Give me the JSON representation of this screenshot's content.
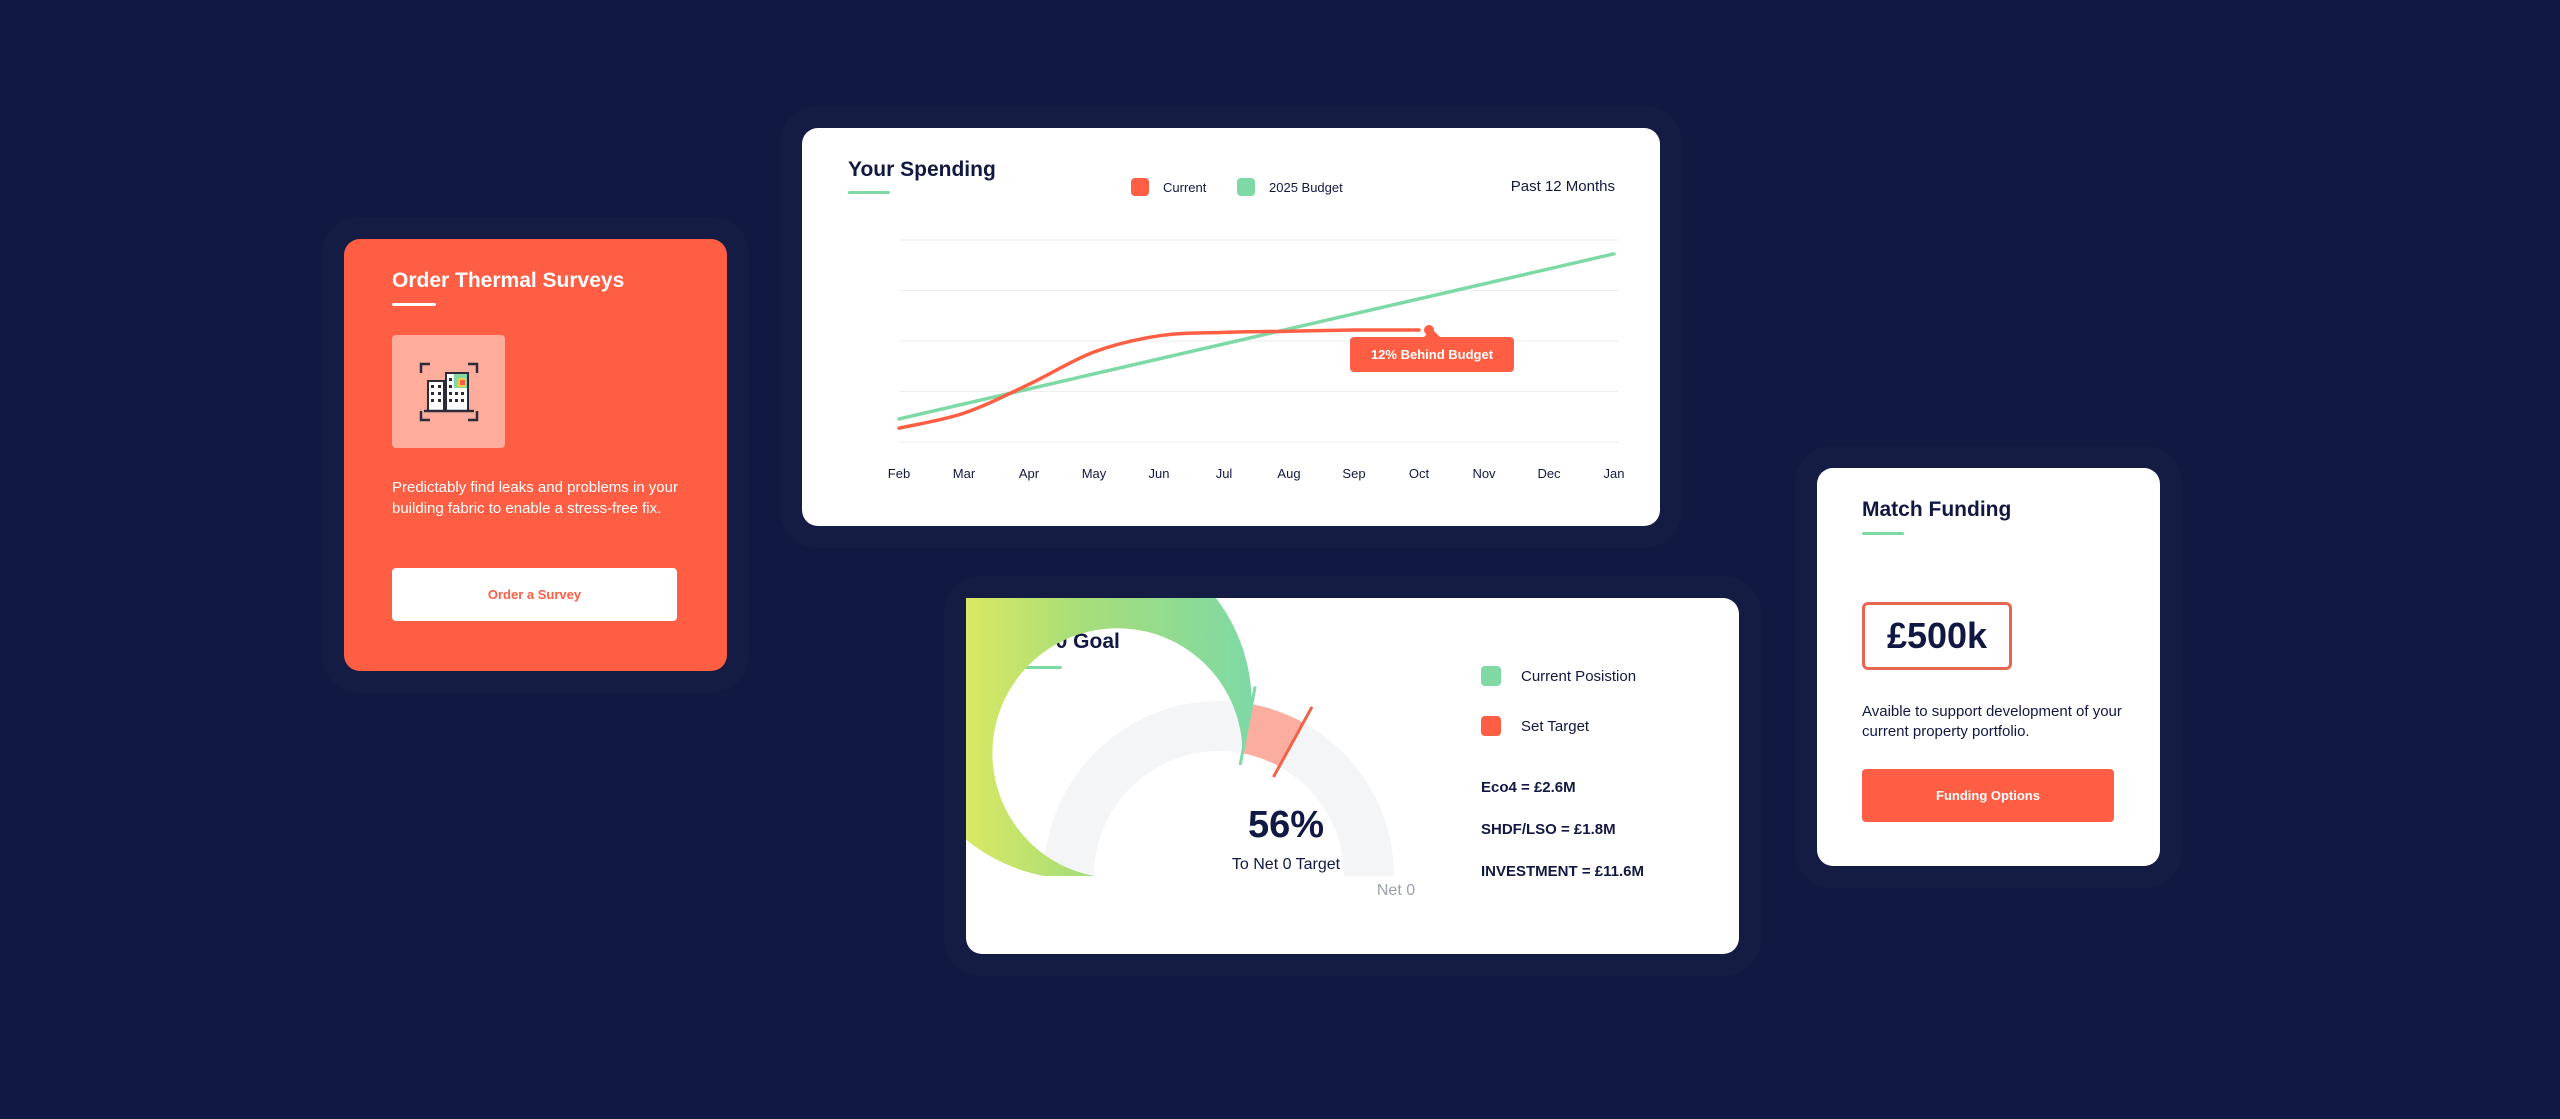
{
  "colors": {
    "background": "#111841",
    "accent": "#FE5E43",
    "green": "#7ED9A5",
    "navy": "#111841"
  },
  "thermal": {
    "title": "Order Thermal Surveys",
    "icon": "building-scan-icon",
    "description": "Predictably find leaks and problems in your building fabric to enable a stress-free fix.",
    "button_label": "Order a Survey"
  },
  "spending": {
    "title": "Your Spending",
    "period": "Past 12 Months",
    "tooltip": "12% Behind Budget"
  },
  "chart_data": {
    "type": "line",
    "title": "Your Spending",
    "x": [
      "Feb",
      "Mar",
      "Apr",
      "May",
      "Jun",
      "Jul",
      "Aug",
      "Sep",
      "Oct",
      "Nov",
      "Dec",
      "Jan"
    ],
    "grid": true,
    "series": [
      {
        "name": "Current",
        "color": "#FE5E43",
        "values": [
          0.12,
          0.25,
          0.5,
          0.78,
          0.92,
          0.95,
          0.96,
          0.97,
          0.97,
          null,
          null,
          null
        ]
      },
      {
        "name": "2025 Budget",
        "color": "#7ED9A5",
        "values": [
          0.2,
          0.33,
          0.46,
          0.59,
          0.72,
          0.85,
          0.98,
          1.11,
          1.24,
          1.37,
          1.5,
          1.63
        ]
      }
    ],
    "ylim": [
      0,
      1.75
    ]
  },
  "net0": {
    "title": "Net 0 Goal",
    "gauge": {
      "current_fraction": 0.56,
      "target_fraction": 0.66
    },
    "percent": "56%",
    "subtitle": "To Net 0 Target",
    "end_label": "Net 0",
    "legend": [
      {
        "label": "Current Posistion",
        "color": "#7ED9A5"
      },
      {
        "label": "Set Target",
        "color": "#FE5E43"
      }
    ],
    "stats": [
      "Eco4 = £2.6M",
      "SHDF/LSO = £1.8M",
      "INVESTMENT = £11.6M"
    ]
  },
  "funding": {
    "title": "Match Funding",
    "amount": "£500k",
    "description": "Avaible to support development of your current property portfolio.",
    "button_label": "Funding Options"
  }
}
